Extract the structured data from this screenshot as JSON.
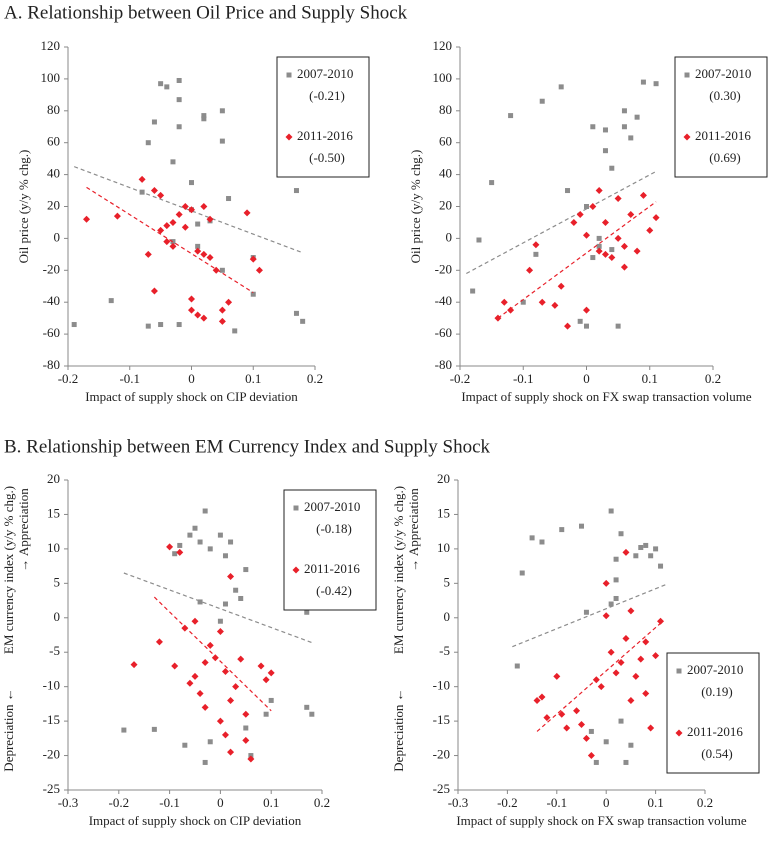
{
  "section_a_title": "A. Relationship between Oil Price and Supply Shock",
  "section_b_title": "B. Relationship between EM Currency Index and Supply Shock",
  "chart_data": [
    {
      "type": "scatter",
      "x_label": "Impact of supply shock on CIP deviation",
      "y_label": "Oil price (y/y % chg.)",
      "xlim": [
        -0.2,
        0.2
      ],
      "xticks": [
        -0.2,
        -0.1,
        0,
        0.1,
        0.2
      ],
      "ylim": [
        -80,
        120
      ],
      "yticks": [
        -80,
        -60,
        -40,
        -20,
        0,
        20,
        40,
        60,
        80,
        100,
        120
      ],
      "legend": "upper right",
      "series": [
        {
          "name": "2007-2010",
          "legend_note": "(-0.21)",
          "color": "#8c8c8c",
          "marker": "square",
          "x": [
            -0.19,
            -0.13,
            -0.08,
            -0.07,
            -0.07,
            -0.06,
            -0.05,
            -0.04,
            -0.05,
            -0.03,
            -0.02,
            -0.02,
            -0.02,
            -0.02,
            0.0,
            0.0,
            0.01,
            0.02,
            0.02,
            0.01,
            0.05,
            0.05,
            0.05,
            0.06,
            0.07,
            0.1,
            0.1,
            0.17,
            0.17,
            0.18,
            -0.03,
            0.03
          ],
          "y": [
            -54,
            -39,
            29,
            60,
            -55,
            73,
            97,
            95,
            -54,
            48,
            99,
            87,
            70,
            -54,
            35,
            18,
            9,
            75,
            77,
            -5,
            80,
            61,
            -20,
            25,
            -58,
            -12,
            -35,
            -47,
            30,
            -52,
            -2,
            11
          ],
          "trend_x": [
            -0.19,
            0.18
          ],
          "trend_y": [
            45,
            -9
          ]
        },
        {
          "name": "2011-2016",
          "legend_note": "(-0.50)",
          "color": "#e8202a",
          "marker": "diamond",
          "x": [
            -0.17,
            -0.12,
            -0.08,
            -0.07,
            -0.06,
            -0.06,
            -0.05,
            -0.05,
            -0.04,
            -0.03,
            -0.03,
            -0.02,
            -0.01,
            -0.01,
            0.0,
            0.0,
            0.0,
            0.01,
            0.01,
            0.02,
            0.02,
            0.03,
            0.03,
            0.04,
            0.05,
            0.05,
            0.06,
            0.09,
            0.1,
            0.11,
            0.02,
            -0.04
          ],
          "y": [
            12,
            14,
            37,
            -10,
            30,
            -33,
            27,
            5,
            -2,
            10,
            -5,
            15,
            7,
            20,
            -38,
            -45,
            18,
            -8,
            -48,
            -50,
            -10,
            12,
            -12,
            -20,
            -45,
            -52,
            -40,
            16,
            -13,
            -20,
            20,
            8
          ],
          "trend_x": [
            -0.17,
            0.1
          ],
          "trend_y": [
            32,
            -34
          ]
        }
      ]
    },
    {
      "type": "scatter",
      "x_label": "Impact of supply shock on FX swap transaction volume",
      "y_label": "Oil price (y/y % chg.)",
      "xlim": [
        -0.2,
        0.2
      ],
      "xticks": [
        -0.2,
        -0.1,
        0,
        0.1,
        0.2
      ],
      "ylim": [
        -80,
        120
      ],
      "yticks": [
        -80,
        -60,
        -40,
        -20,
        0,
        20,
        40,
        60,
        80,
        100,
        120
      ],
      "legend": "upper right",
      "series": [
        {
          "name": "2007-2010",
          "legend_note": "(0.30)",
          "color": "#8c8c8c",
          "marker": "square",
          "x": [
            -0.18,
            -0.17,
            -0.15,
            -0.12,
            -0.1,
            -0.08,
            -0.07,
            -0.04,
            -0.03,
            -0.01,
            0.0,
            0.0,
            0.01,
            0.01,
            0.02,
            0.03,
            0.03,
            0.04,
            0.05,
            0.06,
            0.06,
            0.07,
            0.08,
            0.09,
            0.11,
            0.02,
            0.04
          ],
          "y": [
            -33,
            -1,
            35,
            77,
            -40,
            -10,
            86,
            95,
            30,
            -52,
            -55,
            20,
            70,
            -12,
            0,
            68,
            55,
            44,
            -55,
            80,
            70,
            63,
            76,
            98,
            97,
            -5,
            -7
          ],
          "trend_x": [
            -0.19,
            0.11
          ],
          "trend_y": [
            -22,
            42
          ]
        },
        {
          "name": "2011-2016",
          "legend_note": "(0.69)",
          "color": "#e8202a",
          "marker": "diamond",
          "x": [
            -0.14,
            -0.13,
            -0.12,
            -0.09,
            -0.08,
            -0.07,
            -0.05,
            -0.04,
            -0.03,
            -0.02,
            -0.01,
            0.0,
            0.0,
            0.01,
            0.02,
            0.02,
            0.03,
            0.04,
            0.05,
            0.05,
            0.06,
            0.07,
            0.08,
            0.09,
            0.1,
            0.11,
            0.06,
            0.03
          ],
          "y": [
            -50,
            -40,
            -45,
            -20,
            -4,
            -40,
            -42,
            -30,
            -55,
            10,
            15,
            -45,
            2,
            20,
            -8,
            30,
            10,
            -12,
            25,
            0,
            -5,
            15,
            -8,
            27,
            5,
            13,
            -18,
            -10
          ],
          "trend_x": [
            -0.14,
            0.11
          ],
          "trend_y": [
            -50,
            23
          ]
        }
      ]
    },
    {
      "type": "scatter",
      "x_label": "Impact of supply shock on CIP deviation",
      "y_label": "EM currency index (y/y % chg.)",
      "y_label_low": "Depreciation ←",
      "y_label_high": "→ Appreciation",
      "xlim": [
        -0.3,
        0.2
      ],
      "xticks": [
        -0.3,
        -0.2,
        -0.1,
        0,
        0.1,
        0.2
      ],
      "ylim": [
        -25,
        20
      ],
      "yticks": [
        -25,
        -20,
        -15,
        -10,
        -5,
        0,
        5,
        10,
        15,
        20
      ],
      "legend": "upper right",
      "series": [
        {
          "name": "2007-2010",
          "legend_note": "(-0.18)",
          "color": "#8c8c8c",
          "marker": "square",
          "x": [
            -0.19,
            -0.13,
            -0.09,
            -0.08,
            -0.07,
            -0.06,
            -0.05,
            -0.04,
            -0.03,
            -0.03,
            -0.02,
            -0.02,
            0.0,
            0.01,
            0.01,
            0.02,
            0.03,
            0.04,
            0.05,
            0.05,
            0.06,
            0.09,
            0.1,
            0.17,
            0.17,
            0.18,
            -0.04,
            0.0
          ],
          "y": [
            -16.3,
            -16.2,
            9.3,
            10.5,
            -18.5,
            12,
            13,
            11,
            -21,
            15.5,
            -18,
            10,
            12,
            2,
            9,
            11,
            4,
            2.8,
            7,
            -16,
            -20,
            -14,
            -12,
            0.8,
            -13,
            -14,
            2.3,
            -0.5
          ],
          "trend_x": [
            -0.19,
            0.18
          ],
          "trend_y": [
            6.5,
            -3.6
          ]
        },
        {
          "name": "2011-2016",
          "legend_note": "(-0.42)",
          "color": "#e8202a",
          "marker": "diamond",
          "x": [
            -0.17,
            -0.12,
            -0.1,
            -0.09,
            -0.07,
            -0.06,
            -0.05,
            -0.04,
            -0.03,
            -0.03,
            -0.02,
            -0.01,
            0.0,
            0.0,
            0.01,
            0.01,
            0.02,
            0.02,
            0.03,
            0.04,
            0.05,
            0.05,
            0.06,
            0.08,
            0.09,
            0.1,
            -0.05,
            0.02,
            -0.08
          ],
          "y": [
            -6.8,
            -3.5,
            10.3,
            -7,
            -1.5,
            -9.5,
            -8.5,
            -11,
            -13,
            -6.5,
            -4,
            -5.8,
            -2,
            -15,
            -7.8,
            -17,
            -12,
            -19.5,
            -10,
            -6,
            -14,
            -17.8,
            -20.5,
            -7,
            -9,
            -8,
            -0.5,
            6,
            9.5
          ],
          "trend_x": [
            -0.13,
            0.1
          ],
          "trend_y": [
            3,
            -13.5
          ]
        }
      ]
    },
    {
      "type": "scatter",
      "x_label": "Impact of supply shock on FX swap transaction volume",
      "y_label": "EM currency index (y/y % chg.)",
      "y_label_low": "Depreciation ←",
      "y_label_high": "→ Appreciation",
      "xlim": [
        -0.3,
        0.2
      ],
      "xticks": [
        -0.3,
        -0.2,
        -0.1,
        0,
        0.1,
        0.2
      ],
      "ylim": [
        -25,
        20
      ],
      "yticks": [
        -25,
        -20,
        -15,
        -10,
        -5,
        0,
        5,
        10,
        15,
        20
      ],
      "legend": "lower right",
      "series": [
        {
          "name": "2007-2010",
          "legend_note": "(0.19)",
          "color": "#8c8c8c",
          "marker": "square",
          "x": [
            -0.18,
            -0.17,
            -0.15,
            -0.13,
            -0.09,
            -0.05,
            -0.04,
            -0.02,
            0.0,
            0.01,
            0.01,
            0.02,
            0.02,
            0.03,
            0.03,
            0.04,
            0.05,
            0.06,
            0.07,
            0.08,
            0.09,
            0.1,
            0.11,
            -0.03,
            0.02
          ],
          "y": [
            -7,
            6.5,
            11.6,
            11,
            12.8,
            13.3,
            0.8,
            -21,
            -18,
            15.5,
            2,
            2.8,
            8.5,
            12.2,
            -15,
            -21,
            -18.5,
            9,
            10.2,
            10.5,
            9,
            10,
            7.5,
            -16.5,
            5.5
          ],
          "trend_x": [
            -0.19,
            0.12
          ],
          "trend_y": [
            -4.2,
            4.8
          ]
        },
        {
          "name": "2011-2016",
          "legend_note": "(0.54)",
          "color": "#e8202a",
          "marker": "diamond",
          "x": [
            -0.14,
            -0.13,
            -0.12,
            -0.1,
            -0.09,
            -0.08,
            -0.06,
            -0.05,
            -0.04,
            -0.03,
            -0.02,
            -0.01,
            0.0,
            0.0,
            0.01,
            0.02,
            0.03,
            0.04,
            0.05,
            0.05,
            0.06,
            0.07,
            0.08,
            0.09,
            0.1,
            0.11,
            0.04,
            0.08
          ],
          "y": [
            -12,
            -11.5,
            -14.5,
            -8.5,
            -14,
            -16,
            -13.5,
            -15.5,
            -17.5,
            -20,
            -9,
            -10,
            5,
            0.3,
            -5,
            -8,
            -6.5,
            -3,
            1,
            -12,
            -8.5,
            -6,
            -11,
            -16,
            -5.5,
            -0.5,
            9.5,
            -3.5
          ],
          "trend_x": [
            -0.14,
            0.11
          ],
          "trend_y": [
            -16.5,
            -0.8
          ]
        }
      ]
    }
  ]
}
